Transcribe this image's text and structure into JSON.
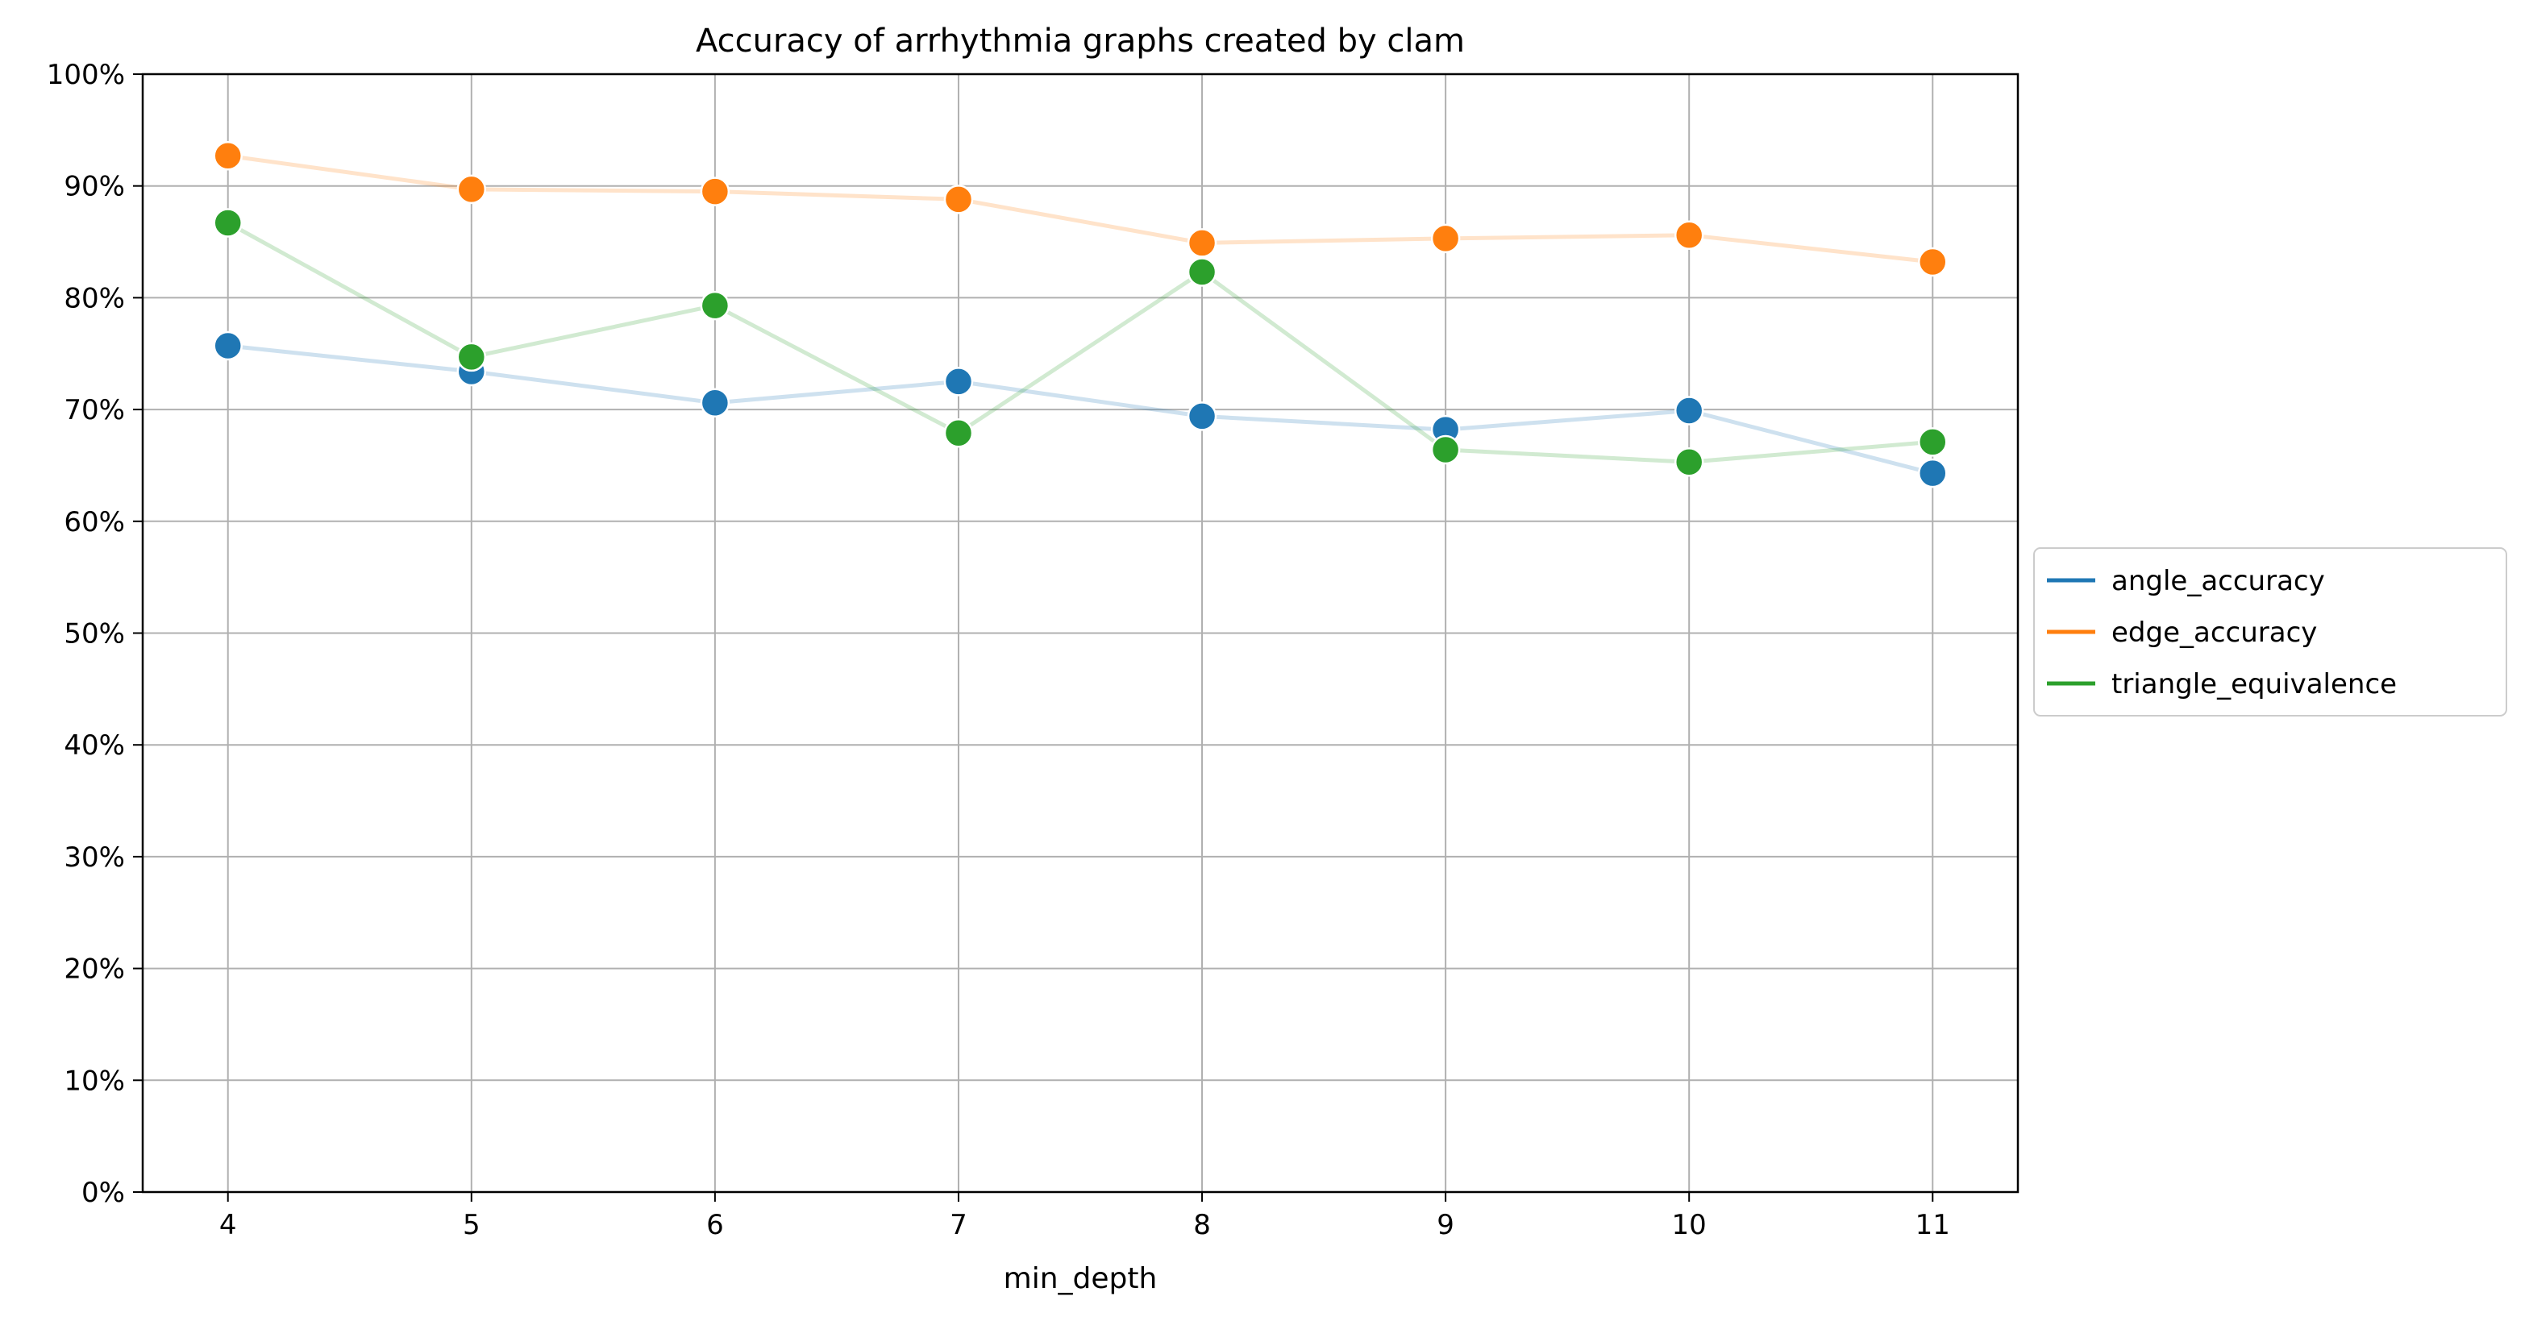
{
  "chart_data": {
    "type": "line",
    "title": "Accuracy of arrhythmia graphs created by clam",
    "xlabel": "min_depth",
    "ylabel": "",
    "x": [
      4,
      5,
      6,
      7,
      8,
      9,
      10,
      11
    ],
    "xticks": [
      "4",
      "5",
      "6",
      "7",
      "8",
      "9",
      "10",
      "11"
    ],
    "xlim": [
      3.65,
      11.35
    ],
    "ylim": [
      0,
      1
    ],
    "yticks": [
      "0%",
      "10%",
      "20%",
      "30%",
      "40%",
      "50%",
      "60%",
      "70%",
      "80%",
      "90%",
      "100%"
    ],
    "grid": true,
    "legend_position": "right-outside",
    "series": [
      {
        "name": "angle_accuracy",
        "color": "#1f77b4",
        "values": [
          0.757,
          0.734,
          0.706,
          0.725,
          0.694,
          0.682,
          0.699,
          0.643
        ]
      },
      {
        "name": "edge_accuracy",
        "color": "#ff7f0e",
        "values": [
          0.927,
          0.897,
          0.895,
          0.888,
          0.849,
          0.853,
          0.856,
          0.832
        ]
      },
      {
        "name": "triangle_equivalence",
        "color": "#2ca02c",
        "values": [
          0.867,
          0.747,
          0.793,
          0.679,
          0.823,
          0.664,
          0.653,
          0.671
        ]
      }
    ]
  }
}
